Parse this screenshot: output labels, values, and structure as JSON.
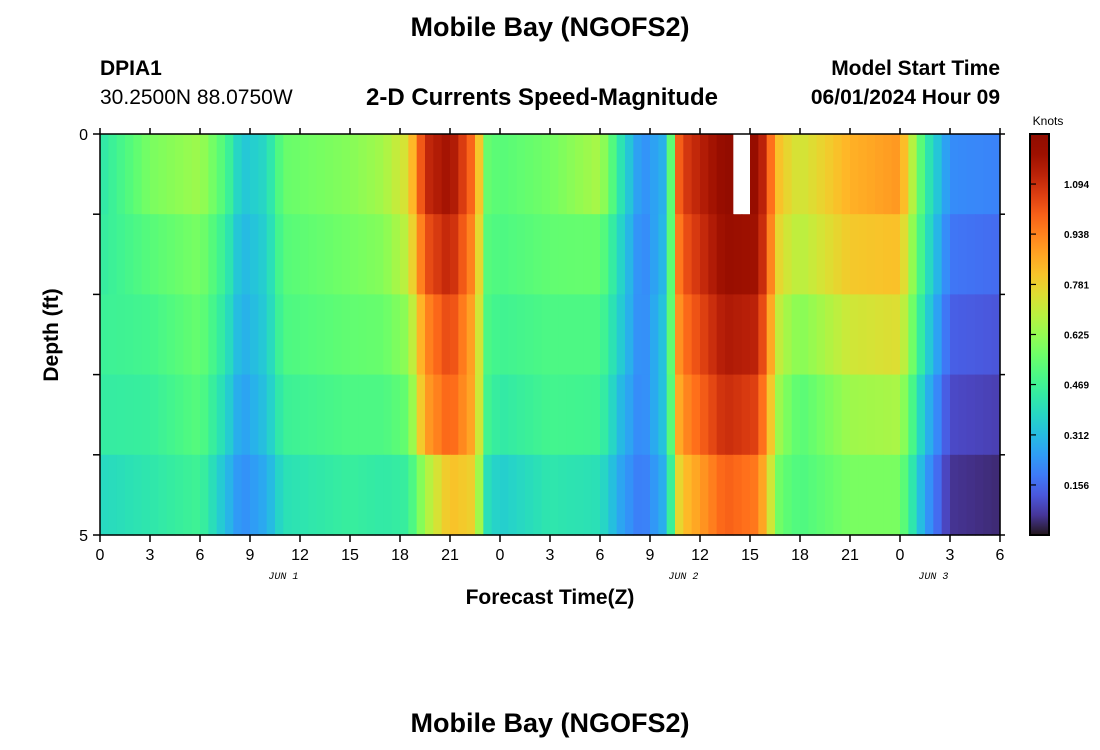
{
  "header": {
    "main_title": "Mobile Bay (NGOFS2)",
    "station_id": "DPIA1",
    "station_location": "30.2500N  88.0750W",
    "plot_title": "2-D Currents Speed-Magnitude",
    "model_start_label": "Model Start Time",
    "model_start_value": "06/01/2024 Hour 09",
    "bottom_title": "Mobile Bay (NGOFS2)"
  },
  "chart_data": {
    "type": "heatmap",
    "title": "2-D Currents Speed-Magnitude",
    "xlabel": "Forecast Time(Z)",
    "ylabel": "Depth (ft)",
    "x_tick_labels": [
      "0",
      "3",
      "6",
      "9",
      "12",
      "15",
      "18",
      "21",
      "0",
      "3",
      "6",
      "9",
      "12",
      "15",
      "18",
      "21",
      "0",
      "3",
      "6"
    ],
    "date_labels": [
      {
        "label": "JUN 1",
        "at_hour": 11
      },
      {
        "label": "JUN 2",
        "at_hour": 35
      },
      {
        "label": "JUN 3",
        "at_hour": 50
      }
    ],
    "x_range_hours": [
      0,
      54
    ],
    "y_tick_labels": [
      "0",
      "5"
    ],
    "y_range": [
      0,
      5
    ],
    "colorbar": {
      "label": "Knots",
      "ticks": [
        "0.156",
        "0.312",
        "0.469",
        "0.625",
        "0.781",
        "0.938",
        "1.094"
      ],
      "range": [
        0.0,
        1.25
      ],
      "colormap": "turbo"
    },
    "layers": 5,
    "keyframes": [
      {
        "hour": 0,
        "values": [
          0.42,
          0.44,
          0.46,
          0.44,
          0.38
        ]
      },
      {
        "hour": 3,
        "values": [
          0.58,
          0.52,
          0.48,
          0.45,
          0.42
        ]
      },
      {
        "hour": 6,
        "values": [
          0.64,
          0.58,
          0.55,
          0.52,
          0.47
        ]
      },
      {
        "hour": 7.5,
        "values": [
          0.5,
          0.45,
          0.42,
          0.38,
          0.32
        ]
      },
      {
        "hour": 8.5,
        "values": [
          0.33,
          0.3,
          0.28,
          0.25,
          0.22
        ]
      },
      {
        "hour": 10,
        "values": [
          0.38,
          0.36,
          0.35,
          0.33,
          0.28
        ]
      },
      {
        "hour": 11,
        "values": [
          0.55,
          0.52,
          0.5,
          0.46,
          0.4
        ]
      },
      {
        "hour": 15,
        "values": [
          0.6,
          0.57,
          0.54,
          0.5,
          0.45
        ]
      },
      {
        "hour": 17,
        "values": [
          0.65,
          0.6,
          0.55,
          0.5,
          0.43
        ]
      },
      {
        "hour": 18.5,
        "values": [
          0.75,
          0.7,
          0.62,
          0.55,
          0.45
        ]
      },
      {
        "hour": 19.5,
        "values": [
          1.1,
          1.02,
          0.92,
          0.88,
          0.65
        ]
      },
      {
        "hour": 21,
        "values": [
          1.18,
          1.12,
          1.05,
          1.0,
          0.82
        ]
      },
      {
        "hour": 22.5,
        "values": [
          0.95,
          0.9,
          0.85,
          0.85,
          0.78
        ]
      },
      {
        "hour": 23.2,
        "values": [
          0.55,
          0.52,
          0.5,
          0.48,
          0.4
        ]
      },
      {
        "hour": 24,
        "values": [
          0.52,
          0.5,
          0.47,
          0.43,
          0.35
        ]
      },
      {
        "hour": 27,
        "values": [
          0.57,
          0.54,
          0.5,
          0.48,
          0.42
        ]
      },
      {
        "hour": 30,
        "values": [
          0.66,
          0.55,
          0.5,
          0.47,
          0.4
        ]
      },
      {
        "hour": 31.3,
        "values": [
          0.4,
          0.36,
          0.34,
          0.3,
          0.26
        ]
      },
      {
        "hour": 32.5,
        "values": [
          0.22,
          0.2,
          0.2,
          0.2,
          0.18
        ]
      },
      {
        "hour": 34,
        "values": [
          0.3,
          0.32,
          0.35,
          0.35,
          0.3
        ]
      },
      {
        "hour": 34.8,
        "values": [
          1.05,
          1.0,
          0.95,
          0.9,
          0.8
        ]
      },
      {
        "hour": 37.5,
        "values": [
          1.22,
          1.2,
          1.15,
          1.1,
          1.0
        ]
      },
      {
        "hour": 39.5,
        "values": [
          1.2,
          1.18,
          1.12,
          1.05,
          0.95
        ]
      },
      {
        "hour": 40.8,
        "values": [
          0.8,
          0.75,
          0.68,
          0.62,
          0.55
        ]
      },
      {
        "hour": 42,
        "values": [
          0.72,
          0.68,
          0.6,
          0.52,
          0.5
        ]
      },
      {
        "hour": 45,
        "values": [
          0.85,
          0.8,
          0.72,
          0.64,
          0.58
        ]
      },
      {
        "hour": 48,
        "values": [
          0.9,
          0.82,
          0.75,
          0.66,
          0.58
        ]
      },
      {
        "hour": 49.5,
        "values": [
          0.45,
          0.42,
          0.38,
          0.32,
          0.26
        ]
      },
      {
        "hour": 51,
        "values": [
          0.22,
          0.18,
          0.14,
          0.1,
          0.06
        ]
      },
      {
        "hour": 54,
        "values": [
          0.2,
          0.16,
          0.12,
          0.08,
          0.04
        ]
      }
    ],
    "missing_cell": {
      "hour": 38.5,
      "layer": 0
    }
  }
}
